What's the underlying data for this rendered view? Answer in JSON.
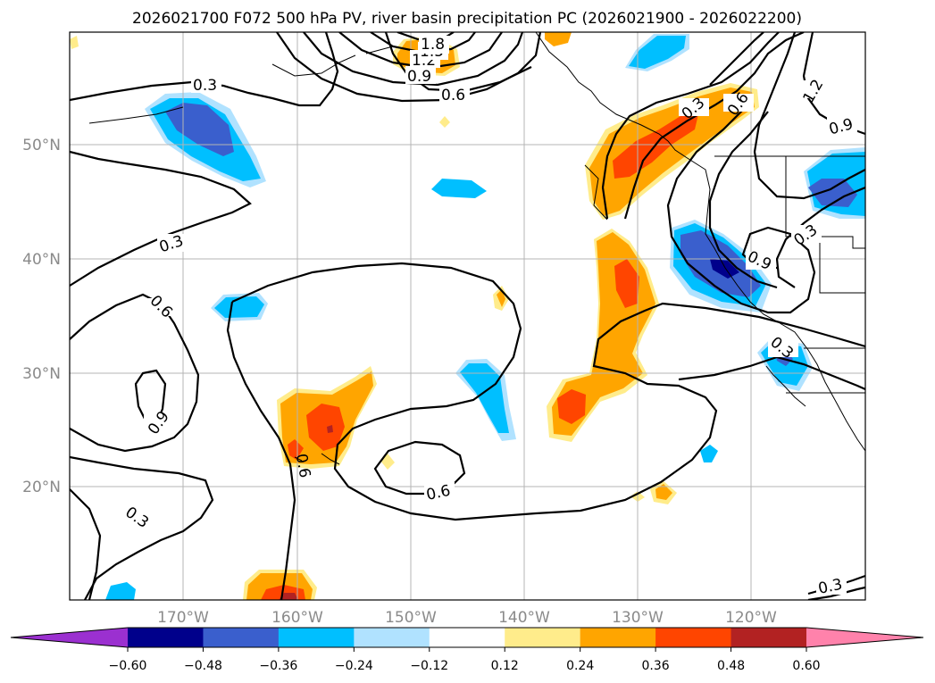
{
  "title": "2026021700 F072 500 hPa PV, river basin precipitation PC (2026021900 - 2026022200)",
  "map": {
    "lat_labels": [
      "50°N",
      "40°N",
      "30°N",
      "20°N"
    ],
    "lon_labels": [
      "170°W",
      "160°W",
      "150°W",
      "140°W",
      "130°W",
      "120°W"
    ],
    "contour_labels": [
      "0.3",
      "0.3",
      "0.6",
      "0.9",
      "0.3",
      "0.6",
      "0.9",
      "1.2",
      "1.5",
      "1.8",
      "0.6",
      "0.3",
      "0.6",
      "0.9",
      "1.2",
      "0.9",
      "0.3",
      "0.3",
      "0.6",
      "0.3"
    ]
  },
  "colorbar": {
    "ticks": [
      "−0.60",
      "−0.48",
      "−0.36",
      "−0.24",
      "−0.12",
      "0.12",
      "0.24",
      "0.36",
      "0.48",
      "0.60"
    ],
    "colors": [
      "#9b30d0",
      "#00008b",
      "#3a5fcd",
      "#00bfff",
      "#b0e2ff",
      "#ffffff",
      "#ffec8b",
      "#ffa500",
      "#ff4500",
      "#b22222",
      "#ff82ab"
    ]
  }
}
